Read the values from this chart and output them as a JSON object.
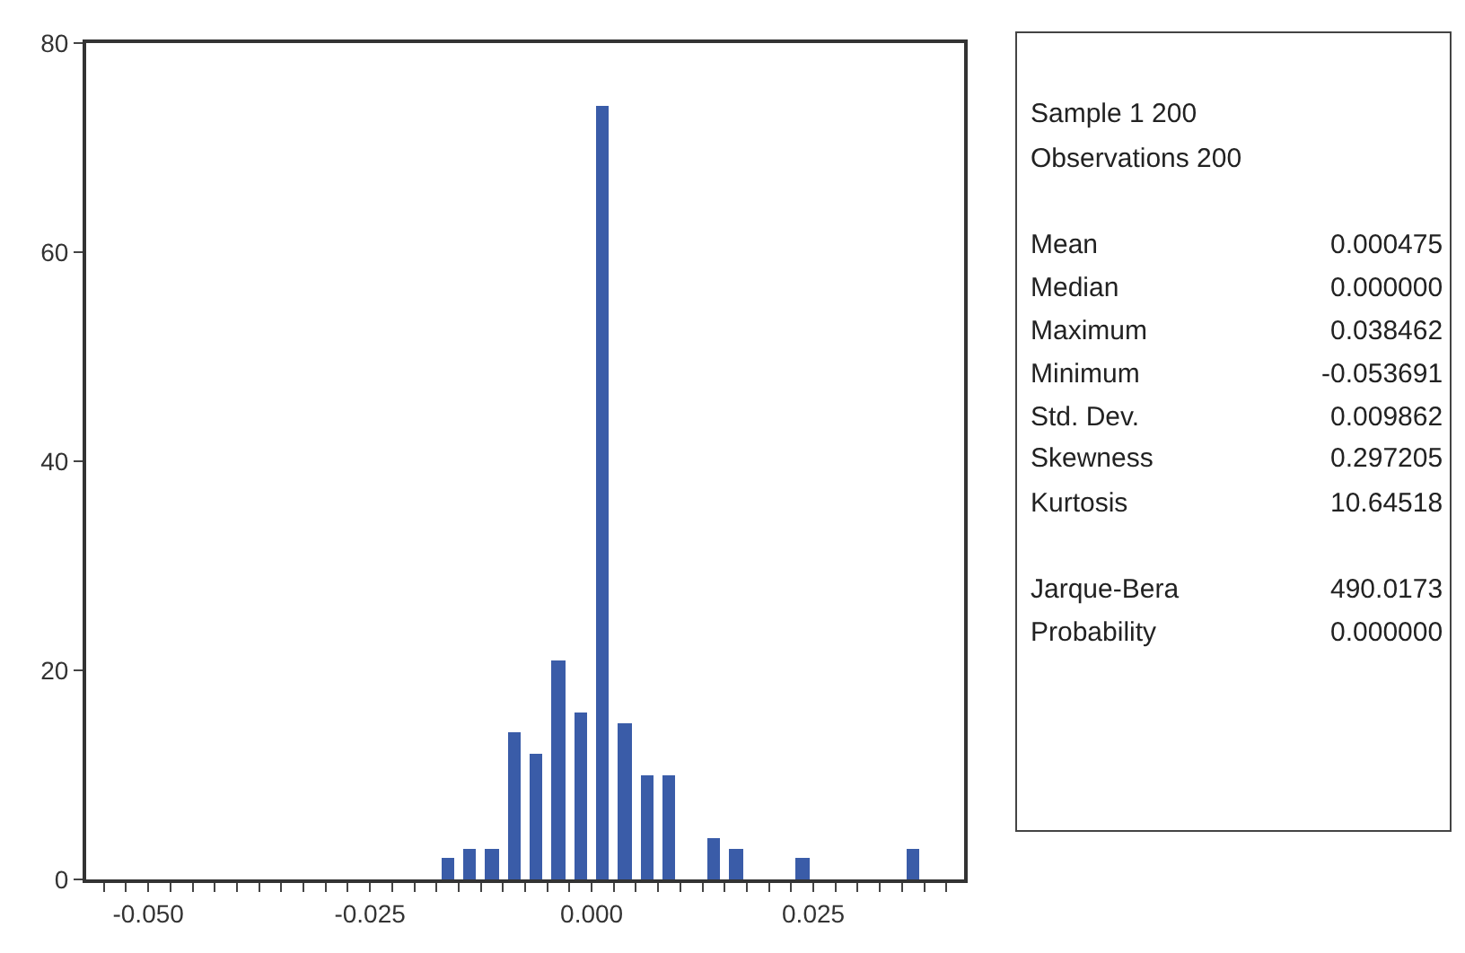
{
  "chart_data": {
    "type": "histogram",
    "bins": [
      -0.0175,
      -0.015,
      -0.0125,
      -0.01,
      -0.0075,
      -0.005,
      -0.0025,
      0,
      0.0025,
      0.005,
      0.0075,
      0.01,
      0.0125,
      0.015,
      0.0175,
      0.02,
      0.0225,
      0.025,
      0.0275,
      0.03,
      0.0325,
      0.035,
      0.0375
    ],
    "values": [
      2,
      3,
      3,
      14,
      12,
      21,
      16,
      74,
      15,
      10,
      10,
      0,
      4,
      3,
      0,
      0,
      2,
      0,
      0,
      0,
      0,
      3
    ],
    "color": "#3a5ca8",
    "xlim": [
      -0.057,
      0.042
    ],
    "xticks": [
      {
        "value": -0.055,
        "label": null
      },
      {
        "value": -0.0525,
        "label": null
      },
      {
        "value": -0.05,
        "label": "-0.050"
      },
      {
        "value": -0.0475,
        "label": null
      },
      {
        "value": -0.045,
        "label": null
      },
      {
        "value": -0.0425,
        "label": null
      },
      {
        "value": -0.04,
        "label": null
      },
      {
        "value": -0.0375,
        "label": null
      },
      {
        "value": -0.035,
        "label": null
      },
      {
        "value": -0.0325,
        "label": null
      },
      {
        "value": -0.03,
        "label": null
      },
      {
        "value": -0.0275,
        "label": null
      },
      {
        "value": -0.025,
        "label": "-0.025"
      },
      {
        "value": -0.0225,
        "label": null
      },
      {
        "value": -0.02,
        "label": null
      },
      {
        "value": -0.0175,
        "label": null
      },
      {
        "value": -0.015,
        "label": null
      },
      {
        "value": -0.0125,
        "label": null
      },
      {
        "value": -0.01,
        "label": null
      },
      {
        "value": -0.0075,
        "label": null
      },
      {
        "value": -0.005,
        "label": null
      },
      {
        "value": -0.0025,
        "label": null
      },
      {
        "value": 0,
        "label": "0.000"
      },
      {
        "value": 0.0025,
        "label": null
      },
      {
        "value": 0.005,
        "label": null
      },
      {
        "value": 0.0075,
        "label": null
      },
      {
        "value": 0.01,
        "label": null
      },
      {
        "value": 0.0125,
        "label": null
      },
      {
        "value": 0.015,
        "label": null
      },
      {
        "value": 0.0175,
        "label": null
      },
      {
        "value": 0.02,
        "label": null
      },
      {
        "value": 0.0225,
        "label": null
      },
      {
        "value": 0.025,
        "label": "0.025"
      },
      {
        "value": 0.0275,
        "label": null
      },
      {
        "value": 0.03,
        "label": null
      },
      {
        "value": 0.0325,
        "label": null
      },
      {
        "value": 0.035,
        "label": null
      },
      {
        "value": 0.0375,
        "label": null
      },
      {
        "value": 0.04,
        "label": null
      }
    ],
    "ylim": [
      0,
      80
    ],
    "yticks": [
      0,
      20,
      40,
      60,
      80
    ],
    "annotations": [
      "Sample 1 200",
      "Observations 200",
      "Mean",
      "0.000475",
      "Median",
      "0.000000",
      "Maximum",
      "0.038462",
      "Minimum",
      "-0.053691",
      "Std. Dev.",
      "0.009862",
      "Skewness",
      "0.297205",
      "Kurtosis",
      "10.64518",
      "Jarque-Bera",
      "490.0173",
      "Probability",
      "0.000000"
    ]
  }
}
